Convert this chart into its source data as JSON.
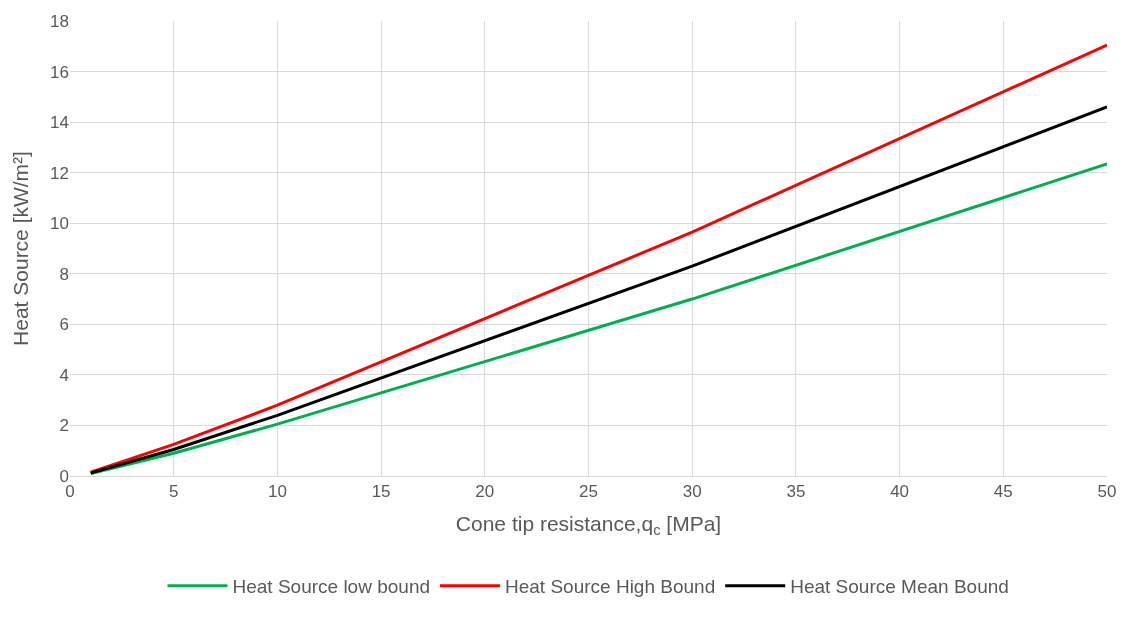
{
  "chart_data": {
    "type": "line",
    "xlabel": "Cone tip resistance,q$_{c}$ [MPa]",
    "ylabel": "Heat Source [kW/m²]",
    "x": [
      1,
      5,
      10,
      30,
      50
    ],
    "series": [
      {
        "name": "Heat Source low bound",
        "color": "#00b050",
        "values": [
          0.1,
          0.9,
          2.05,
          7.0,
          12.35
        ]
      },
      {
        "name": "Heat Source High Bound",
        "color": "#ff0000",
        "values": [
          0.15,
          1.25,
          2.8,
          9.65,
          17.05
        ]
      },
      {
        "name": "Heat Source Mean Bound",
        "color": "#000000",
        "values": [
          0.12,
          1.05,
          2.4,
          8.3,
          14.6
        ]
      }
    ],
    "xlim": [
      0,
      50
    ],
    "xticks": [
      0,
      5,
      10,
      15,
      20,
      25,
      30,
      35,
      40,
      45,
      50
    ],
    "ylim": [
      0,
      18
    ],
    "yticks": [
      0,
      2,
      4,
      6,
      8,
      10,
      12,
      14,
      16,
      18
    ],
    "grid": true,
    "legend": "bottom",
    "marker": "none",
    "line_style": "solid"
  }
}
